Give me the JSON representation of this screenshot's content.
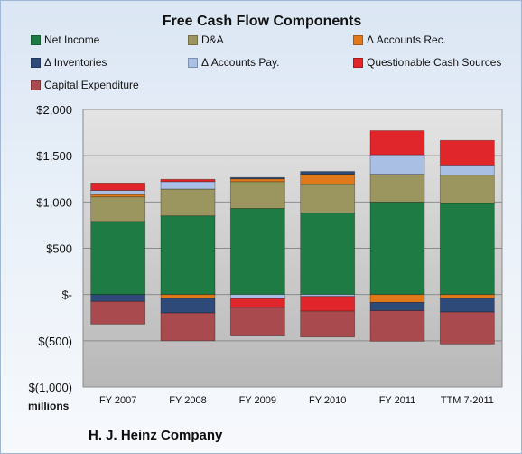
{
  "chart_data": {
    "type": "bar",
    "stacked": true,
    "title": "Free Cash Flow Components",
    "categories": [
      "FY 2007",
      "FY 2008",
      "FY 2009",
      "FY 2010",
      "FY 2011",
      "TTM 7-2011"
    ],
    "ylim": [
      -1000,
      2000
    ],
    "yticks": [
      {
        "value": 2000,
        "label": "$2,000"
      },
      {
        "value": 1500,
        "label": "$1,500"
      },
      {
        "value": 1000,
        "label": "$1,000"
      },
      {
        "value": 500,
        "label": "$500"
      },
      {
        "value": 0,
        "label": "$-"
      },
      {
        "value": -500,
        "label": "$(500)"
      },
      {
        "value": -1000,
        "label": "$(1,000)"
      }
    ],
    "units_label": "millions",
    "grid": true,
    "legend_position": "top",
    "series": [
      {
        "name": "Net Income",
        "color": "#1e7b43",
        "values": [
          790,
          850,
          930,
          880,
          1000,
          985
        ]
      },
      {
        "name": "D&A",
        "color": "#9b9560",
        "values": [
          265,
          290,
          290,
          310,
          300,
          305
        ]
      },
      {
        "name": "Δ Accounts Rec.",
        "color": "#e0791a",
        "values": [
          25,
          -40,
          30,
          110,
          -85,
          -40
        ]
      },
      {
        "name": "Δ Inventories",
        "color": "#2e4a78",
        "values": [
          -75,
          -160,
          15,
          30,
          -90,
          -150
        ]
      },
      {
        "name": "Δ Accounts Pay.",
        "color": "#a9c0e4",
        "values": [
          45,
          80,
          -45,
          -20,
          210,
          110
        ]
      },
      {
        "name": "Questionable Cash Sources",
        "color": "#e0262a",
        "values": [
          80,
          25,
          -95,
          -160,
          260,
          265
        ]
      },
      {
        "name": "Capital Expenditure",
        "color": "#a84a4e",
        "values": [
          -245,
          -300,
          -300,
          -280,
          -330,
          -345
        ]
      }
    ]
  },
  "footer": {
    "company": "H. J. Heinz Company"
  }
}
